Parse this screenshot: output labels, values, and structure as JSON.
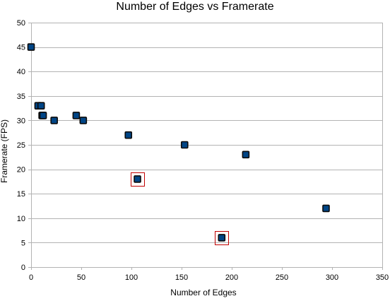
{
  "chart_data": {
    "type": "scatter",
    "title": "Number of Edges vs Framerate",
    "xlabel": "Number of Edges",
    "ylabel": "Framerate (FPS)",
    "xlim": [
      0,
      350
    ],
    "ylim": [
      0,
      50
    ],
    "xticks": [
      0,
      50,
      100,
      150,
      200,
      250,
      300,
      350
    ],
    "yticks": [
      0,
      5,
      10,
      15,
      20,
      25,
      30,
      35,
      40,
      45,
      50
    ],
    "grid": "horizontal",
    "series": [
      {
        "color": "#004586",
        "marker": "square",
        "points": [
          {
            "x": 0,
            "y": 45
          },
          {
            "x": 7,
            "y": 33
          },
          {
            "x": 10,
            "y": 33
          },
          {
            "x": 11,
            "y": 31
          },
          {
            "x": 12,
            "y": 31
          },
          {
            "x": 23,
            "y": 30
          },
          {
            "x": 45,
            "y": 31
          },
          {
            "x": 52,
            "y": 30
          },
          {
            "x": 97,
            "y": 27
          },
          {
            "x": 106,
            "y": 18,
            "highlighted": true
          },
          {
            "x": 153,
            "y": 25
          },
          {
            "x": 190,
            "y": 6,
            "highlighted": true
          },
          {
            "x": 214,
            "y": 23
          },
          {
            "x": 294,
            "y": 12
          }
        ]
      }
    ],
    "highlight_color": "#c00000"
  }
}
